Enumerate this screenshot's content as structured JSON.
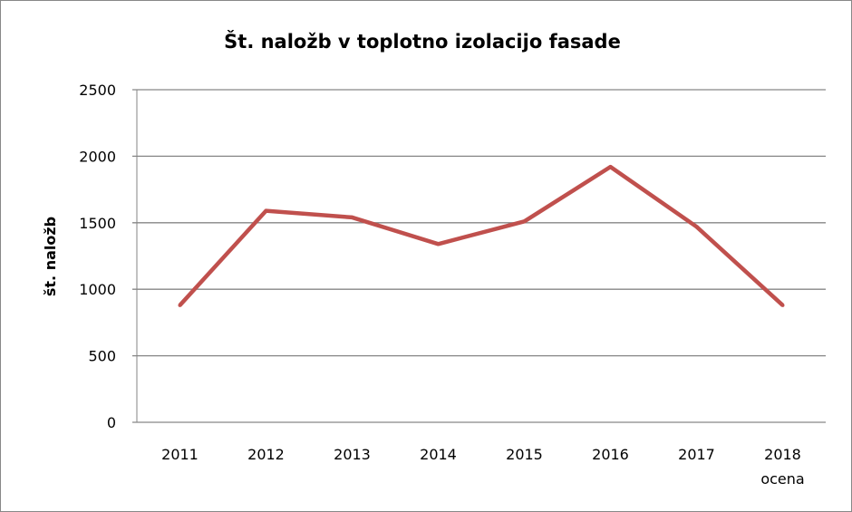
{
  "chart_data": {
    "type": "line",
    "title": "Št. naložb v toplotno izolacijo fasade",
    "xlabel": "",
    "ylabel": "št. naložb",
    "categories": [
      "2011",
      "2012",
      "2013",
      "2014",
      "2015",
      "2016",
      "2017",
      "2018\nocena"
    ],
    "series": [
      {
        "values": [
          880,
          1590,
          1540,
          1340,
          1510,
          1920,
          1470,
          880
        ],
        "color": "#c0504d"
      }
    ],
    "ylim": [
      0,
      2500
    ],
    "yticks": [
      0,
      500,
      1000,
      1500,
      2000,
      2500
    ],
    "grid": true,
    "legend": "none"
  }
}
